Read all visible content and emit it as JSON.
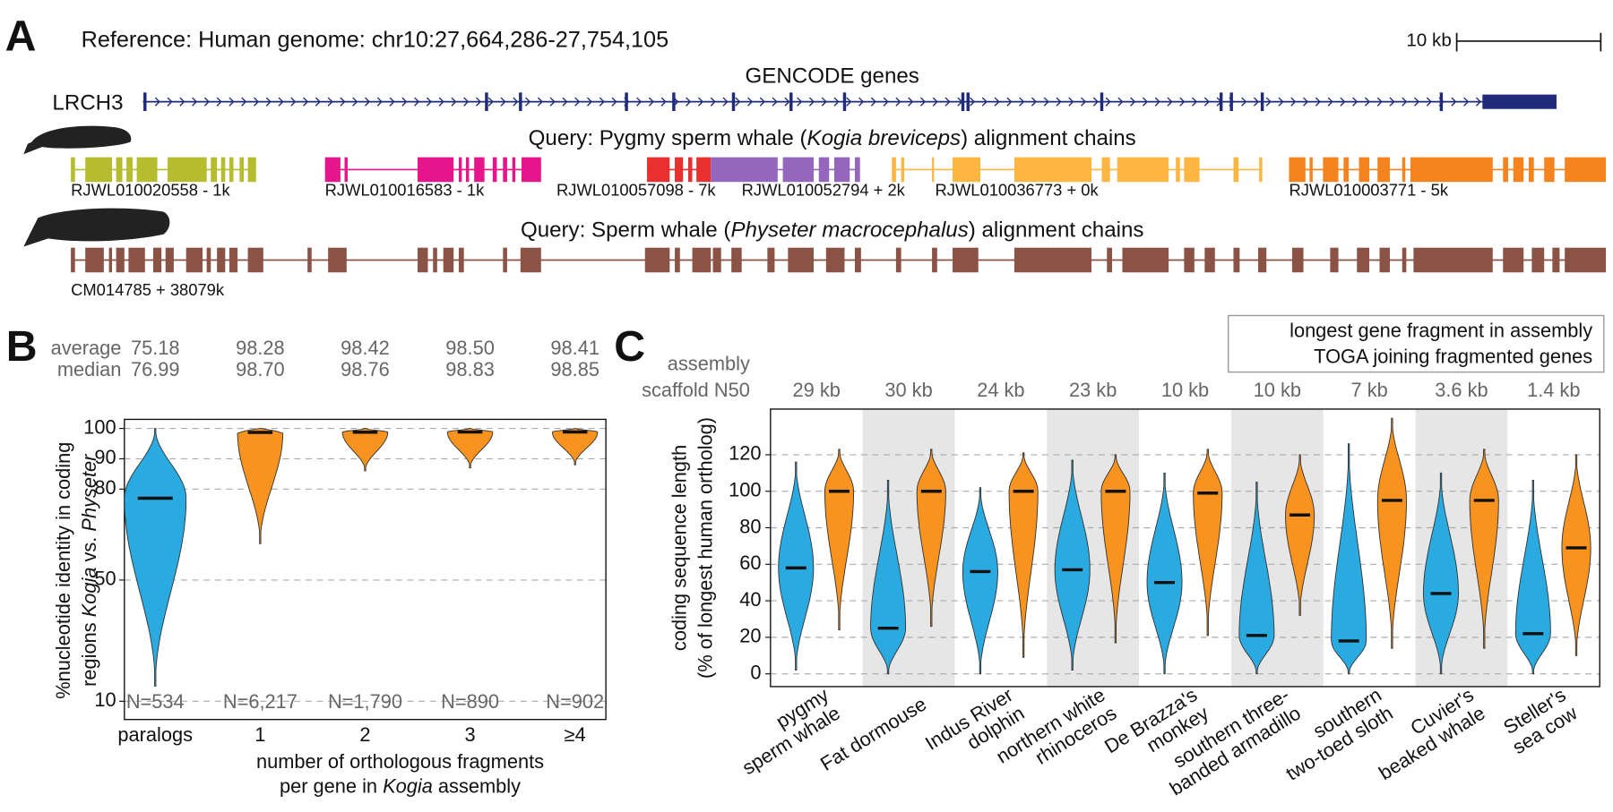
{
  "panel_a": {
    "letter": "A",
    "reference": "Reference: Human genome:  chr10:27,664,286-27,754,105",
    "scale": "10 kb",
    "track_title": "GENCODE genes",
    "gene": "LRCH3",
    "gene_color": "#1f2a7a",
    "queries": [
      {
        "title": [
          "Query: Pygmy sperm whale (",
          "Kogia breviceps",
          ") alignment chains"
        ],
        "chains": [
          {
            "label": "RJWL010020558 - 1k",
            "color": "#b5bd2e"
          },
          {
            "label": "RJWL010016583 - 1k",
            "color": "#e6158c"
          },
          {
            "label": "RJWL010057098 - 7k",
            "color": "#e8312f"
          },
          {
            "label": "RJWL010052794 + 2k",
            "color": "#9467bd"
          },
          {
            "label": "RJWL010036773 + 0k",
            "color": "#fdb642"
          },
          {
            "label": "RJWL010003771 - 5k",
            "color": "#f5841f"
          }
        ]
      },
      {
        "title": [
          "Query: Sperm whale (",
          "Physeter macrocephalus",
          ") alignment chains"
        ],
        "chains": [
          {
            "label": "CM014785 + 38079k",
            "color": "#8b5345"
          }
        ]
      }
    ]
  },
  "chart_data": [
    {
      "type": "violin",
      "panel": "B",
      "categories": [
        "paralogs",
        "1",
        "2",
        "3",
        "≥4"
      ],
      "category_colors": [
        "#29abe2",
        "#f7931e",
        "#f7931e",
        "#f7931e",
        "#f7931e"
      ],
      "stats": [
        {
          "label": "average",
          "values": [
            "75.18",
            "98.28",
            "98.42",
            "98.50",
            "98.41"
          ]
        },
        {
          "label": "median",
          "values": [
            "76.99",
            "98.70",
            "98.76",
            "98.83",
            "98.85"
          ]
        }
      ],
      "median": [
        76.99,
        98.7,
        98.76,
        98.83,
        98.85
      ],
      "min": [
        15,
        62,
        86,
        87,
        88
      ],
      "max": [
        100,
        100,
        100,
        100,
        100
      ],
      "n_labels": [
        "N=534",
        "N=6,217",
        "N=1,790",
        "N=890",
        "N=902"
      ],
      "ylabel": [
        [
          "%nucleotide identity in coding"
        ],
        [
          "regions ",
          "Kogia",
          " vs. ",
          "Physeter"
        ]
      ],
      "xlabel": [
        [
          "number of orthologous fragments"
        ],
        [
          "per gene in ",
          "Kogia",
          " assembly"
        ]
      ],
      "xlabel_color": "#f7931e",
      "ylim": [
        4,
        103
      ],
      "yticks": [
        10,
        50,
        80,
        90,
        100
      ],
      "grid": true
    },
    {
      "type": "violin",
      "panel": "C",
      "categories": [
        [
          "pygmy",
          "sperm whale"
        ],
        [
          "Fat dormouse"
        ],
        [
          "Indus River",
          "dolphin"
        ],
        [
          "northern white",
          "rhinoceros"
        ],
        [
          "De Brazza's",
          "monkey"
        ],
        [
          "southern three-",
          "banded armadillo"
        ],
        [
          "southern",
          "two-toed sloth"
        ],
        [
          "Cuvier's",
          "beaked whale"
        ],
        [
          "Steller's",
          "sea cow"
        ]
      ],
      "header": [
        "assembly",
        "scaffold N50"
      ],
      "n50": [
        "29 kb",
        "30 kb",
        "24 kb",
        "23 kb",
        "10 kb",
        "10 kb",
        "7 kb",
        "3.6 kb",
        "1.4 kb"
      ],
      "series": [
        {
          "name": "longest gene fragment in assembly",
          "color": "#29abe2",
          "median": [
            58,
            25,
            56,
            57,
            50,
            21,
            18,
            44,
            22
          ],
          "min": [
            2,
            0,
            0,
            2,
            0,
            0,
            0,
            0,
            0
          ],
          "max": [
            116,
            106,
            102,
            117,
            110,
            105,
            126,
            110,
            106
          ]
        },
        {
          "name": "TOGA joining fragmented genes",
          "color": "#f7931e",
          "median": [
            100,
            100,
            100,
            100,
            99,
            87,
            95,
            95,
            69
          ],
          "min": [
            24,
            26,
            9,
            17,
            21,
            32,
            14,
            14,
            10
          ],
          "max": [
            123,
            123,
            121,
            120,
            123,
            120,
            140,
            123,
            120
          ]
        }
      ],
      "ylabel": [
        "coding sequence length",
        "(% of longest human ortholog)"
      ],
      "ylim": [
        -7,
        145
      ],
      "yticks": [
        0,
        20,
        40,
        60,
        80,
        100,
        120
      ],
      "grid": true,
      "legend": "top-right"
    }
  ]
}
